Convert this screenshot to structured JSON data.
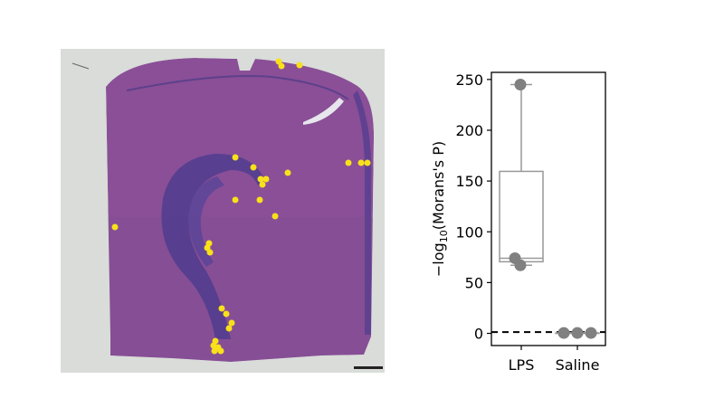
{
  "chart_data": [
    {
      "type": "image",
      "panel": "tissue-section",
      "description": "H&E stained brain hemisphere section with highlighted spots",
      "colors": {
        "background": "#d9dcd9",
        "tissue": "#8a4f97",
        "tissue_dark": "#4f3c8e",
        "spots": "#f8e11a",
        "scalebar": "#222222"
      }
    },
    {
      "type": "box",
      "panel": "box-plot",
      "ylabel_base": "−log",
      "ylabel_sub": "10",
      "ylabel_rest": "(Morans's P)",
      "categories": [
        "LPS",
        "Saline"
      ],
      "ylim": [
        -12,
        257
      ],
      "yticks": [
        0,
        50,
        100,
        150,
        200,
        250
      ],
      "reference_line": {
        "y": 1.3,
        "style": "dashed"
      },
      "series": [
        {
          "category": "LPS",
          "points": [
            245,
            74,
            67
          ],
          "box": {
            "min": 67,
            "q1": 70.5,
            "median": 74,
            "q3": 159.5,
            "max": 245
          }
        },
        {
          "category": "Saline",
          "points": [
            0.4,
            0.4,
            0.4
          ],
          "box": {
            "min": 0.4,
            "q1": 0.4,
            "median": 0.4,
            "q3": 0.4,
            "max": 0.4
          }
        }
      ],
      "colors": {
        "box": "#999999",
        "point": "#808080",
        "line": "#000000"
      }
    }
  ]
}
